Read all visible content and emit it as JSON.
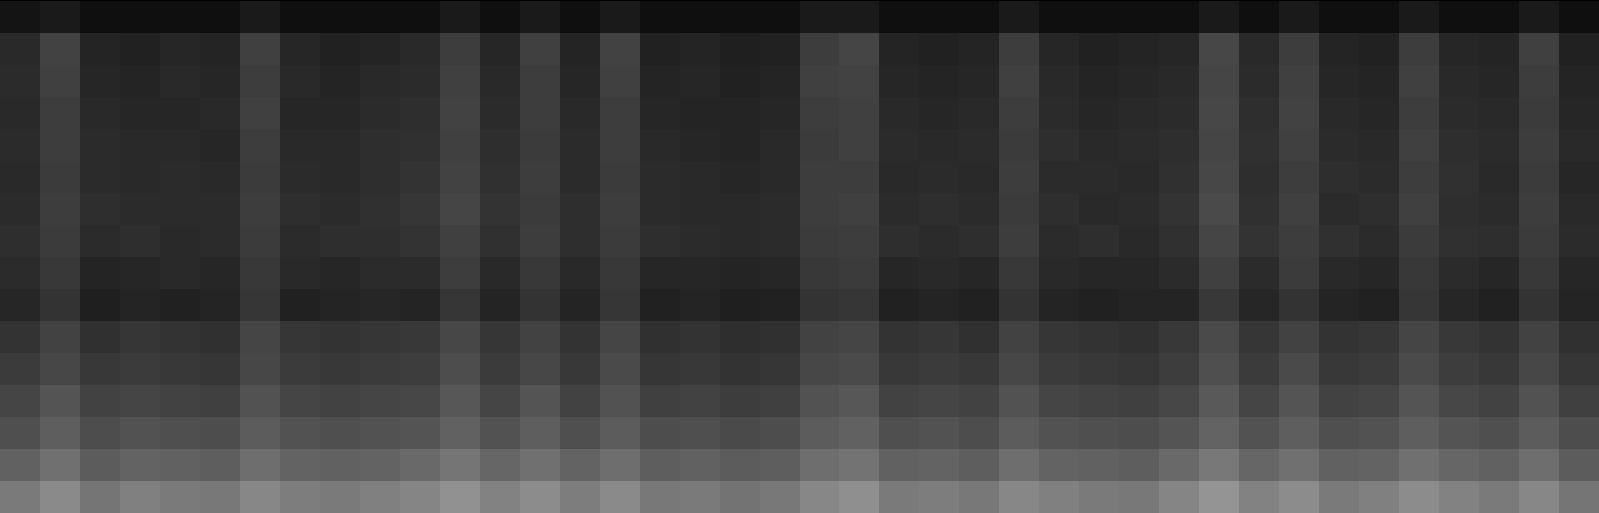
{
  "chart_data": {
    "type": "heatmap",
    "tick_labels": false,
    "zlim": [
      0,
      100
    ],
    "cells": [
      [
        8,
        10,
        6,
        6,
        6,
        6,
        10,
        6,
        6,
        6,
        6,
        10,
        6,
        10,
        6,
        10,
        6,
        6,
        6,
        6,
        10,
        10,
        6,
        6,
        6,
        10,
        6,
        6,
        6,
        6,
        10,
        6,
        10,
        6,
        6,
        10,
        6,
        6,
        10,
        6
      ],
      [
        16,
        26,
        14,
        13,
        15,
        14,
        25,
        15,
        13,
        14,
        16,
        24,
        15,
        25,
        14,
        26,
        13,
        14,
        12,
        13,
        24,
        27,
        14,
        13,
        14,
        24,
        15,
        13,
        14,
        15,
        28,
        16,
        24,
        14,
        13,
        24,
        15,
        14,
        25,
        13
      ],
      [
        17,
        25,
        15,
        14,
        16,
        15,
        24,
        16,
        14,
        16,
        17,
        25,
        16,
        24,
        15,
        25,
        14,
        15,
        13,
        14,
        25,
        26,
        15,
        14,
        15,
        25,
        16,
        14,
        15,
        16,
        27,
        17,
        25,
        15,
        14,
        25,
        16,
        15,
        24,
        14
      ],
      [
        16,
        24,
        16,
        15,
        15,
        16,
        25,
        15,
        15,
        17,
        18,
        26,
        17,
        24,
        16,
        24,
        15,
        14,
        14,
        15,
        24,
        25,
        16,
        15,
        16,
        24,
        17,
        15,
        16,
        17,
        28,
        18,
        26,
        16,
        15,
        24,
        17,
        16,
        23,
        15
      ],
      [
        17,
        24,
        17,
        16,
        16,
        15,
        24,
        16,
        16,
        18,
        19,
        25,
        18,
        23,
        17,
        24,
        16,
        15,
        14,
        16,
        23,
        25,
        17,
        16,
        17,
        23,
        18,
        16,
        17,
        18,
        27,
        19,
        25,
        17,
        16,
        25,
        18,
        17,
        24,
        16
      ],
      [
        16,
        23,
        17,
        16,
        17,
        16,
        23,
        17,
        16,
        18,
        20,
        26,
        19,
        24,
        17,
        23,
        17,
        16,
        15,
        16,
        24,
        24,
        16,
        17,
        16,
        24,
        17,
        17,
        16,
        19,
        28,
        18,
        24,
        18,
        17,
        24,
        19,
        16,
        23,
        15
      ],
      [
        17,
        24,
        18,
        17,
        17,
        17,
        24,
        18,
        17,
        19,
        21,
        27,
        20,
        23,
        18,
        24,
        17,
        16,
        16,
        17,
        24,
        25,
        17,
        18,
        17,
        23,
        18,
        16,
        17,
        20,
        29,
        19,
        25,
        17,
        18,
        25,
        18,
        17,
        24,
        16
      ],
      [
        18,
        23,
        17,
        18,
        16,
        17,
        23,
        17,
        18,
        18,
        20,
        25,
        19,
        24,
        18,
        23,
        18,
        17,
        16,
        17,
        23,
        24,
        18,
        17,
        18,
        24,
        17,
        18,
        16,
        19,
        27,
        20,
        24,
        19,
        17,
        23,
        19,
        18,
        23,
        17
      ],
      [
        17,
        22,
        14,
        15,
        16,
        15,
        22,
        16,
        15,
        17,
        17,
        24,
        16,
        22,
        16,
        22,
        15,
        15,
        14,
        15,
        22,
        23,
        15,
        16,
        15,
        22,
        16,
        15,
        15,
        17,
        25,
        17,
        23,
        16,
        15,
        22,
        17,
        15,
        22,
        15
      ],
      [
        15,
        20,
        12,
        14,
        13,
        14,
        21,
        13,
        14,
        15,
        14,
        21,
        14,
        20,
        14,
        21,
        13,
        14,
        12,
        13,
        20,
        21,
        13,
        14,
        13,
        20,
        14,
        13,
        14,
        14,
        22,
        15,
        20,
        14,
        13,
        21,
        15,
        13,
        20,
        14
      ],
      [
        20,
        26,
        19,
        21,
        20,
        19,
        27,
        21,
        20,
        21,
        22,
        28,
        21,
        26,
        20,
        27,
        19,
        20,
        18,
        19,
        26,
        27,
        20,
        21,
        19,
        26,
        21,
        20,
        19,
        22,
        29,
        21,
        26,
        20,
        21,
        27,
        22,
        20,
        26,
        19
      ],
      [
        23,
        28,
        22,
        23,
        22,
        21,
        28,
        23,
        22,
        23,
        24,
        30,
        23,
        28,
        22,
        29,
        21,
        22,
        20,
        21,
        28,
        29,
        22,
        23,
        22,
        28,
        23,
        22,
        21,
        24,
        31,
        23,
        29,
        22,
        23,
        29,
        24,
        22,
        28,
        21
      ],
      [
        27,
        33,
        26,
        27,
        26,
        25,
        32,
        27,
        26,
        27,
        28,
        34,
        27,
        33,
        26,
        32,
        25,
        26,
        24,
        25,
        32,
        34,
        26,
        27,
        26,
        32,
        27,
        26,
        25,
        28,
        35,
        27,
        33,
        26,
        27,
        33,
        28,
        26,
        32,
        25
      ],
      [
        31,
        37,
        30,
        32,
        31,
        30,
        36,
        32,
        31,
        32,
        33,
        38,
        32,
        37,
        31,
        36,
        30,
        31,
        29,
        30,
        36,
        38,
        31,
        32,
        30,
        36,
        32,
        31,
        30,
        33,
        39,
        32,
        37,
        31,
        32,
        37,
        33,
        31,
        36,
        30
      ],
      [
        38,
        44,
        36,
        39,
        38,
        37,
        43,
        39,
        38,
        39,
        41,
        46,
        40,
        44,
        39,
        43,
        37,
        38,
        36,
        37,
        43,
        45,
        38,
        39,
        37,
        43,
        39,
        38,
        37,
        41,
        47,
        40,
        44,
        38,
        39,
        44,
        40,
        38,
        43,
        36
      ],
      [
        48,
        54,
        46,
        50,
        48,
        47,
        53,
        49,
        48,
        50,
        52,
        57,
        51,
        55,
        49,
        54,
        47,
        48,
        45,
        47,
        53,
        56,
        48,
        49,
        47,
        53,
        50,
        48,
        47,
        52,
        58,
        51,
        55,
        48,
        50,
        55,
        51,
        48,
        53,
        46
      ]
    ]
  }
}
